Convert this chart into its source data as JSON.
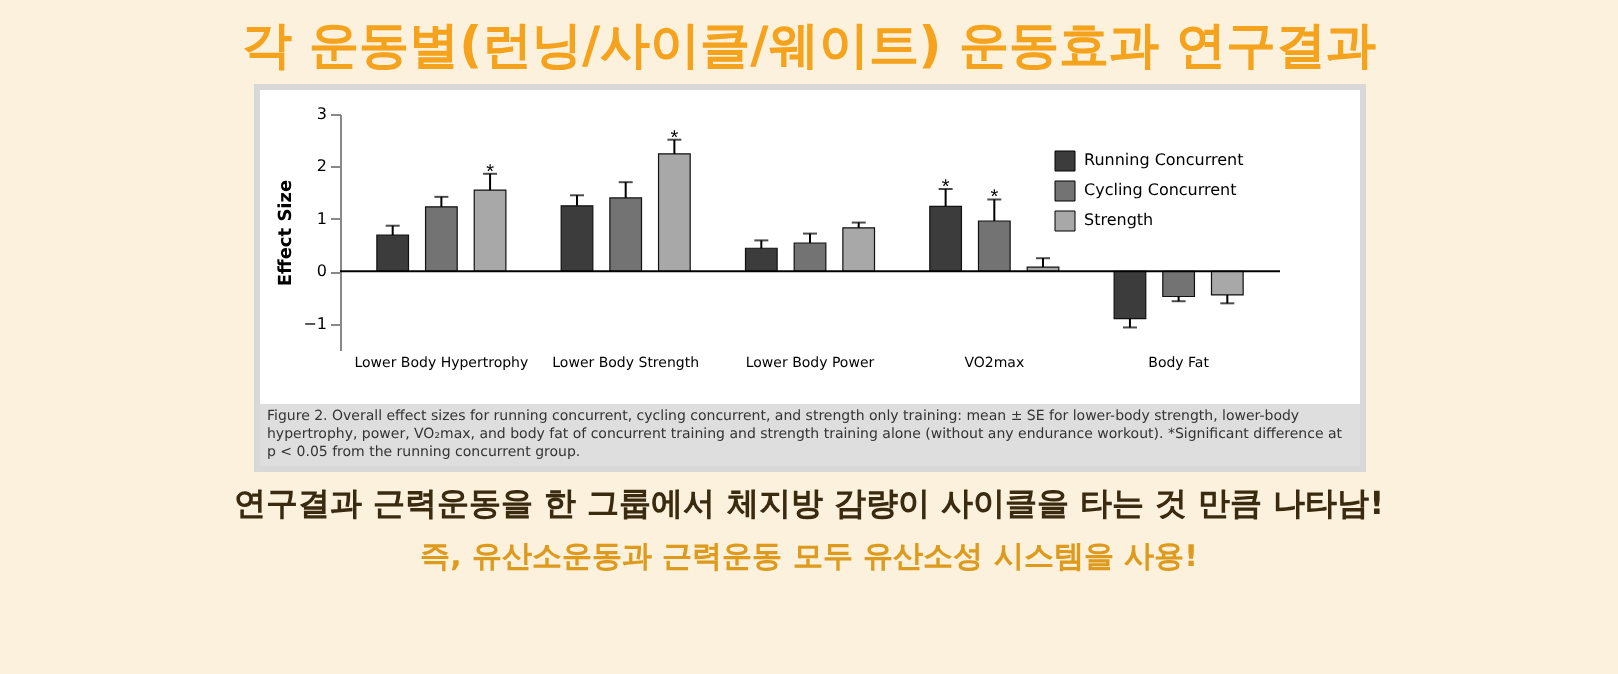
{
  "chart_data": {
    "type": "bar",
    "title": "각 운동별(런닝/사이클/웨이트) 운동효과 연구결과",
    "categories": [
      "Lower Body Hypertrophy",
      "Lower Body Strength",
      "Lower Body Power",
      "VO2max",
      "Body Fat"
    ],
    "ylabel": "Effect Size",
    "series": [
      {
        "name": "Running Concurrent",
        "color": "#3c3c3c",
        "values": [
          0.69,
          1.25,
          0.44,
          1.24,
          -0.9
        ],
        "value_labels": [
          null,
          null,
          null,
          "*",
          null
        ],
        "errors": [
          [
            0.69,
            0.87
          ],
          [
            1.25,
            1.45
          ],
          [
            0.44,
            0.59
          ],
          [
            1.24,
            1.57
          ],
          [
            -1.07,
            -0.9
          ]
        ]
      },
      {
        "name": "Cycling Concurrent",
        "color": "#737373",
        "values": [
          1.23,
          1.4,
          0.54,
          0.96,
          -0.48
        ],
        "value_labels": [
          null,
          null,
          null,
          "*",
          null
        ],
        "errors": [
          [
            1.23,
            1.42
          ],
          [
            1.4,
            1.7
          ],
          [
            0.54,
            0.72
          ],
          [
            0.96,
            1.37
          ],
          [
            -0.57,
            -0.48
          ]
        ]
      },
      {
        "name": "Strength",
        "color": "#a8a8a8",
        "values": [
          1.55,
          2.24,
          0.83,
          0.08,
          -0.45
        ],
        "value_labels": [
          "*",
          "*",
          null,
          null,
          null
        ],
        "errors": [
          [
            1.55,
            1.86
          ],
          [
            2.24,
            2.51
          ],
          [
            0.83,
            0.93
          ],
          [
            0.08,
            0.25
          ],
          [
            -0.61,
            -0.45
          ]
        ]
      }
    ],
    "ylim": [
      -1.5,
      3
    ],
    "yticks": [
      -1,
      0,
      1,
      2,
      3
    ],
    "grid": false,
    "legend": "top right",
    "ref_lines": [
      {
        "axis": "y",
        "value": 0
      }
    ],
    "annotations": [
      "Figure 2. Overall effect sizes for running concurrent, cycling concurrent, and strength only training: mean ± SE for lower-body strength, lower-body hypertrophy, power, VO₂max, and body fat of concurrent training and strength training alone (without any endurance workout). *Significant difference at p < 0.05 from the running concurrent group.",
      "연구결과 근력운동을 한 그룹에서 체지방 감량이 사이클을 타는 것 만큼 나타남!",
      "즉, 유산소운동과 근력운동 모두 유산소성 시스템을 사용!"
    ]
  }
}
